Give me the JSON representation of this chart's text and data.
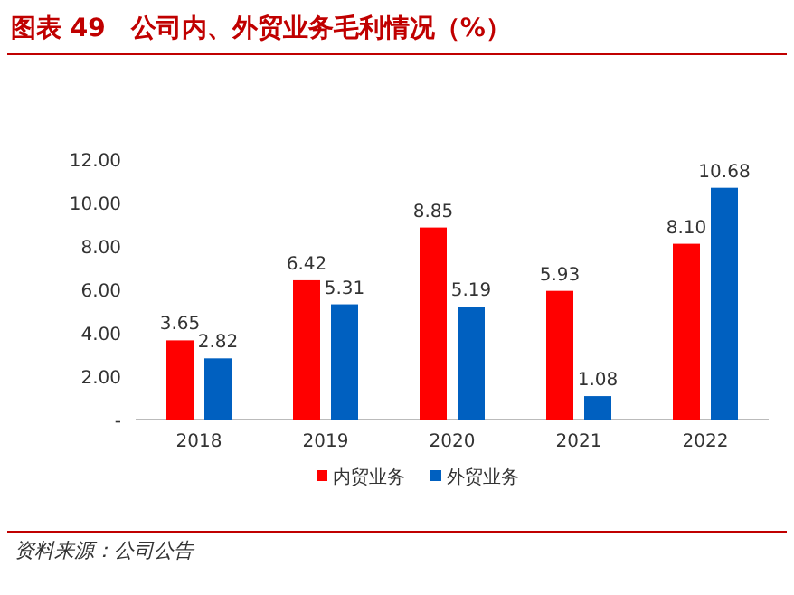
{
  "chart_data": {
    "type": "bar",
    "title": "图表 49　公司内、外贸业务毛利情况（%）",
    "categories": [
      "2018",
      "2019",
      "2020",
      "2021",
      "2022"
    ],
    "series": [
      {
        "name": "内贸业务",
        "color": "#ff0000",
        "values": [
          3.65,
          6.42,
          8.85,
          5.93,
          8.1
        ],
        "value_labels": [
          "3.65",
          "6.42",
          "8.85",
          "5.93",
          "8.10"
        ]
      },
      {
        "name": "外贸业务",
        "color": "#0060c0",
        "values": [
          2.82,
          5.31,
          5.19,
          1.08,
          10.68
        ],
        "value_labels": [
          "2.82",
          "5.31",
          "5.19",
          "1.08",
          "10.68"
        ]
      }
    ],
    "ylim": [
      0,
      12
    ],
    "yticks": [
      {
        "value": 0,
        "label": "-"
      },
      {
        "value": 2,
        "label": "2.00"
      },
      {
        "value": 4,
        "label": "4.00"
      },
      {
        "value": 6,
        "label": "6.00"
      },
      {
        "value": 8,
        "label": "8.00"
      },
      {
        "value": 10,
        "label": "10.00"
      },
      {
        "value": 12,
        "label": "12.00"
      }
    ],
    "grid": false,
    "legend": "bottom",
    "annotations": [
      "资料来源：公司公告"
    ]
  }
}
